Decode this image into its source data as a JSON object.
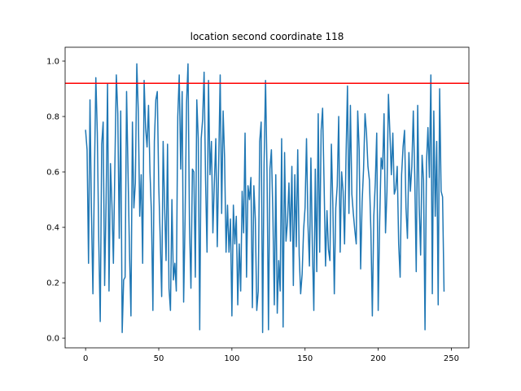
{
  "chart_data": {
    "type": "line",
    "title": "location second coordinate 118",
    "xlabel": "",
    "ylabel": "",
    "xlim": [
      -14,
      262
    ],
    "ylim": [
      -0.035,
      1.05
    ],
    "xticks": [
      0,
      50,
      100,
      150,
      200,
      250
    ],
    "yticks": [
      0.0,
      0.2,
      0.4,
      0.6,
      0.8,
      1.0
    ],
    "xtick_labels": [
      "0",
      "50",
      "100",
      "150",
      "200",
      "250"
    ],
    "ytick_labels": [
      "0.0",
      "0.2",
      "0.4",
      "0.6",
      "0.8",
      "1.0"
    ],
    "grid": false,
    "legend": "none",
    "series_color": "#1f77b4",
    "threshold": {
      "y": 0.92,
      "color": "#ff0000"
    },
    "series": [
      {
        "values": [
          0.75,
          0.68,
          0.27,
          0.86,
          0.45,
          0.16,
          0.58,
          0.94,
          0.74,
          0.35,
          0.06,
          0.7,
          0.78,
          0.19,
          0.49,
          0.92,
          0.17,
          0.63,
          0.48,
          0.27,
          0.62,
          0.95,
          0.81,
          0.36,
          0.82,
          0.02,
          0.21,
          0.22,
          0.89,
          0.6,
          0.31,
          0.08,
          0.78,
          0.47,
          0.56,
          0.99,
          0.82,
          0.44,
          0.59,
          0.27,
          0.93,
          0.76,
          0.69,
          0.84,
          0.6,
          0.45,
          0.1,
          0.71,
          0.86,
          0.89,
          0.55,
          0.36,
          0.15,
          0.71,
          0.48,
          0.28,
          0.7,
          0.18,
          0.1,
          0.5,
          0.21,
          0.27,
          0.17,
          0.8,
          0.95,
          0.61,
          0.89,
          0.13,
          0.43,
          0.85,
          0.99,
          0.41,
          0.18,
          0.61,
          0.6,
          0.22,
          0.86,
          0.72,
          0.03,
          0.72,
          0.79,
          0.96,
          0.57,
          0.31,
          0.93,
          0.59,
          0.71,
          0.38,
          0.56,
          0.72,
          0.33,
          0.64,
          0.95,
          0.45,
          0.82,
          0.65,
          0.31,
          0.48,
          0.31,
          0.43,
          0.08,
          0.48,
          0.34,
          0.44,
          0.12,
          0.34,
          0.17,
          0.53,
          0.38,
          0.74,
          0.22,
          0.55,
          0.5,
          0.58,
          0.11,
          0.55,
          0.43,
          0.1,
          0.17,
          0.71,
          0.78,
          0.02,
          0.63,
          0.93,
          0.6,
          0.03,
          0.61,
          0.68,
          0.45,
          0.12,
          0.59,
          0.09,
          0.28,
          0.17,
          0.72,
          0.04,
          0.67,
          0.35,
          0.42,
          0.56,
          0.35,
          0.62,
          0.19,
          0.59,
          0.33,
          0.68,
          0.3,
          0.16,
          0.23,
          0.39,
          0.47,
          0.72,
          0.41,
          0.26,
          0.65,
          0.33,
          0.1,
          0.61,
          0.24,
          0.81,
          0.31,
          0.75,
          0.83,
          0.56,
          0.26,
          0.46,
          0.32,
          0.28,
          0.7,
          0.48,
          0.16,
          0.47,
          0.55,
          0.8,
          0.31,
          0.6,
          0.53,
          0.34,
          0.65,
          0.91,
          0.45,
          0.84,
          0.52,
          0.45,
          0.39,
          0.34,
          0.82,
          0.68,
          0.25,
          0.49,
          0.61,
          0.81,
          0.74,
          0.62,
          0.57,
          0.39,
          0.08,
          0.44,
          0.56,
          0.74,
          0.1,
          0.42,
          0.65,
          0.61,
          0.81,
          0.38,
          0.53,
          0.88,
          0.74,
          0.59,
          0.74,
          0.52,
          0.54,
          0.62,
          0.34,
          0.22,
          0.59,
          0.69,
          0.75,
          0.47,
          0.36,
          0.67,
          0.53,
          0.62,
          0.82,
          0.58,
          0.24,
          0.84,
          0.48,
          0.3,
          0.66,
          0.57,
          0.03,
          0.63,
          0.76,
          0.58,
          0.95,
          0.16,
          0.82,
          0.44,
          0.71,
          0.12,
          0.9,
          0.53,
          0.51,
          0.17
        ]
      }
    ]
  }
}
